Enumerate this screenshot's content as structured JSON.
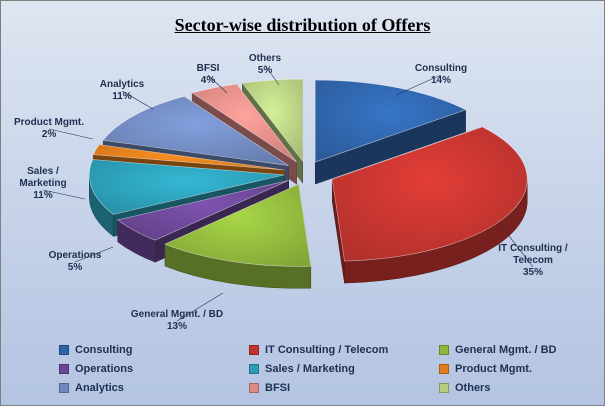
{
  "chart_data": {
    "type": "pie",
    "title": "Sector-wise distribution of Offers",
    "slices": [
      {
        "name": "Consulting",
        "value": 14,
        "label": "14%",
        "color": "#2f63a8"
      },
      {
        "name": "IT Consulting / Telecom",
        "value": 35,
        "label": "35%",
        "color": "#c0342f"
      },
      {
        "name": "General Mgmt. / BD",
        "value": 13,
        "label": "13%",
        "color": "#8eb53c"
      },
      {
        "name": "Operations",
        "value": 5,
        "label": "5%",
        "color": "#6a4694"
      },
      {
        "name": "Sales / Marketing",
        "value": 11,
        "label": "11%",
        "color": "#2c9cb4"
      },
      {
        "name": "Product Mgmt.",
        "value": 2,
        "label": "2%",
        "color": "#e07c1c"
      },
      {
        "name": "Analytics",
        "value": 11,
        "label": "11%",
        "color": "#6f87bb"
      },
      {
        "name": "BFSI",
        "value": 4,
        "label": "4%",
        "color": "#e08a86"
      },
      {
        "name": "Others",
        "value": 5,
        "label": "5%",
        "color": "#b4cc80"
      }
    ],
    "exploded": true,
    "legend_position": "bottom"
  }
}
